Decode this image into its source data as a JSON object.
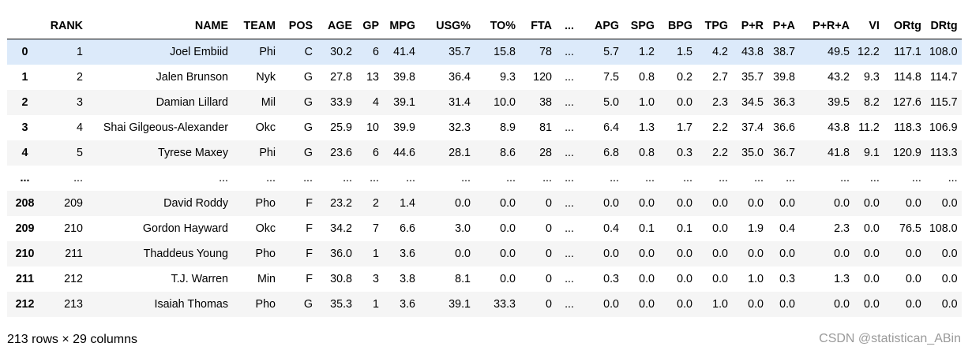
{
  "table": {
    "columns": [
      "",
      "RANK",
      "NAME",
      "TEAM",
      "POS",
      "AGE",
      "GP",
      "MPG",
      "USG%",
      "TO%",
      "FTA",
      "...",
      "APG",
      "SPG",
      "BPG",
      "TPG",
      "P+R",
      "P+A",
      "P+R+A",
      "VI",
      "ORtg",
      "DRtg"
    ],
    "rows": [
      [
        "0",
        "1",
        "Joel Embiid",
        "Phi",
        "C",
        "30.2",
        "6",
        "41.4",
        "35.7",
        "15.8",
        "78",
        "...",
        "5.7",
        "1.2",
        "1.5",
        "4.2",
        "43.8",
        "38.7",
        "49.5",
        "12.2",
        "117.1",
        "108.0"
      ],
      [
        "1",
        "2",
        "Jalen Brunson",
        "Nyk",
        "G",
        "27.8",
        "13",
        "39.8",
        "36.4",
        "9.3",
        "120",
        "...",
        "7.5",
        "0.8",
        "0.2",
        "2.7",
        "35.7",
        "39.8",
        "43.2",
        "9.3",
        "114.8",
        "114.7"
      ],
      [
        "2",
        "3",
        "Damian Lillard",
        "Mil",
        "G",
        "33.9",
        "4",
        "39.1",
        "31.4",
        "10.0",
        "38",
        "...",
        "5.0",
        "1.0",
        "0.0",
        "2.3",
        "34.5",
        "36.3",
        "39.5",
        "8.2",
        "127.6",
        "115.7"
      ],
      [
        "3",
        "4",
        "Shai Gilgeous-Alexander",
        "Okc",
        "G",
        "25.9",
        "10",
        "39.9",
        "32.3",
        "8.9",
        "81",
        "...",
        "6.4",
        "1.3",
        "1.7",
        "2.2",
        "37.4",
        "36.6",
        "43.8",
        "11.2",
        "118.3",
        "106.9"
      ],
      [
        "4",
        "5",
        "Tyrese Maxey",
        "Phi",
        "G",
        "23.6",
        "6",
        "44.6",
        "28.1",
        "8.6",
        "28",
        "...",
        "6.8",
        "0.8",
        "0.3",
        "2.2",
        "35.0",
        "36.7",
        "41.8",
        "9.1",
        "120.9",
        "113.3"
      ],
      [
        "...",
        "...",
        "...",
        "...",
        "...",
        "...",
        "...",
        "...",
        "...",
        "...",
        "...",
        "...",
        "...",
        "...",
        "...",
        "...",
        "...",
        "...",
        "...",
        "...",
        "...",
        "..."
      ],
      [
        "208",
        "209",
        "David Roddy",
        "Pho",
        "F",
        "23.2",
        "2",
        "1.4",
        "0.0",
        "0.0",
        "0",
        "...",
        "0.0",
        "0.0",
        "0.0",
        "0.0",
        "0.0",
        "0.0",
        "0.0",
        "0.0",
        "0.0",
        "0.0"
      ],
      [
        "209",
        "210",
        "Gordon Hayward",
        "Okc",
        "F",
        "34.2",
        "7",
        "6.6",
        "3.0",
        "0.0",
        "0",
        "...",
        "0.4",
        "0.1",
        "0.1",
        "0.0",
        "1.9",
        "0.4",
        "2.3",
        "0.0",
        "76.5",
        "108.0"
      ],
      [
        "210",
        "211",
        "Thaddeus Young",
        "Pho",
        "F",
        "36.0",
        "1",
        "3.6",
        "0.0",
        "0.0",
        "0",
        "...",
        "0.0",
        "0.0",
        "0.0",
        "0.0",
        "0.0",
        "0.0",
        "0.0",
        "0.0",
        "0.0",
        "0.0"
      ],
      [
        "211",
        "212",
        "T.J. Warren",
        "Min",
        "F",
        "30.8",
        "3",
        "3.8",
        "8.1",
        "0.0",
        "0",
        "...",
        "0.3",
        "0.0",
        "0.0",
        "0.0",
        "1.0",
        "0.3",
        "1.3",
        "0.0",
        "0.0",
        "0.0"
      ],
      [
        "212",
        "213",
        "Isaiah Thomas",
        "Pho",
        "G",
        "35.3",
        "1",
        "3.6",
        "39.1",
        "33.3",
        "0",
        "...",
        "0.0",
        "0.0",
        "0.0",
        "1.0",
        "0.0",
        "0.0",
        "0.0",
        "0.0",
        "0.0",
        "0.0"
      ]
    ],
    "highlighted_row": 0
  },
  "footer": {
    "shape": "213 rows × 29 columns"
  },
  "watermark": {
    "text": "CSDN @statistican_ABin"
  },
  "colors": {
    "highlight_row": "#dceafa",
    "stripe_row": "#f5f5f5",
    "watermark": "#9a9a9a"
  }
}
